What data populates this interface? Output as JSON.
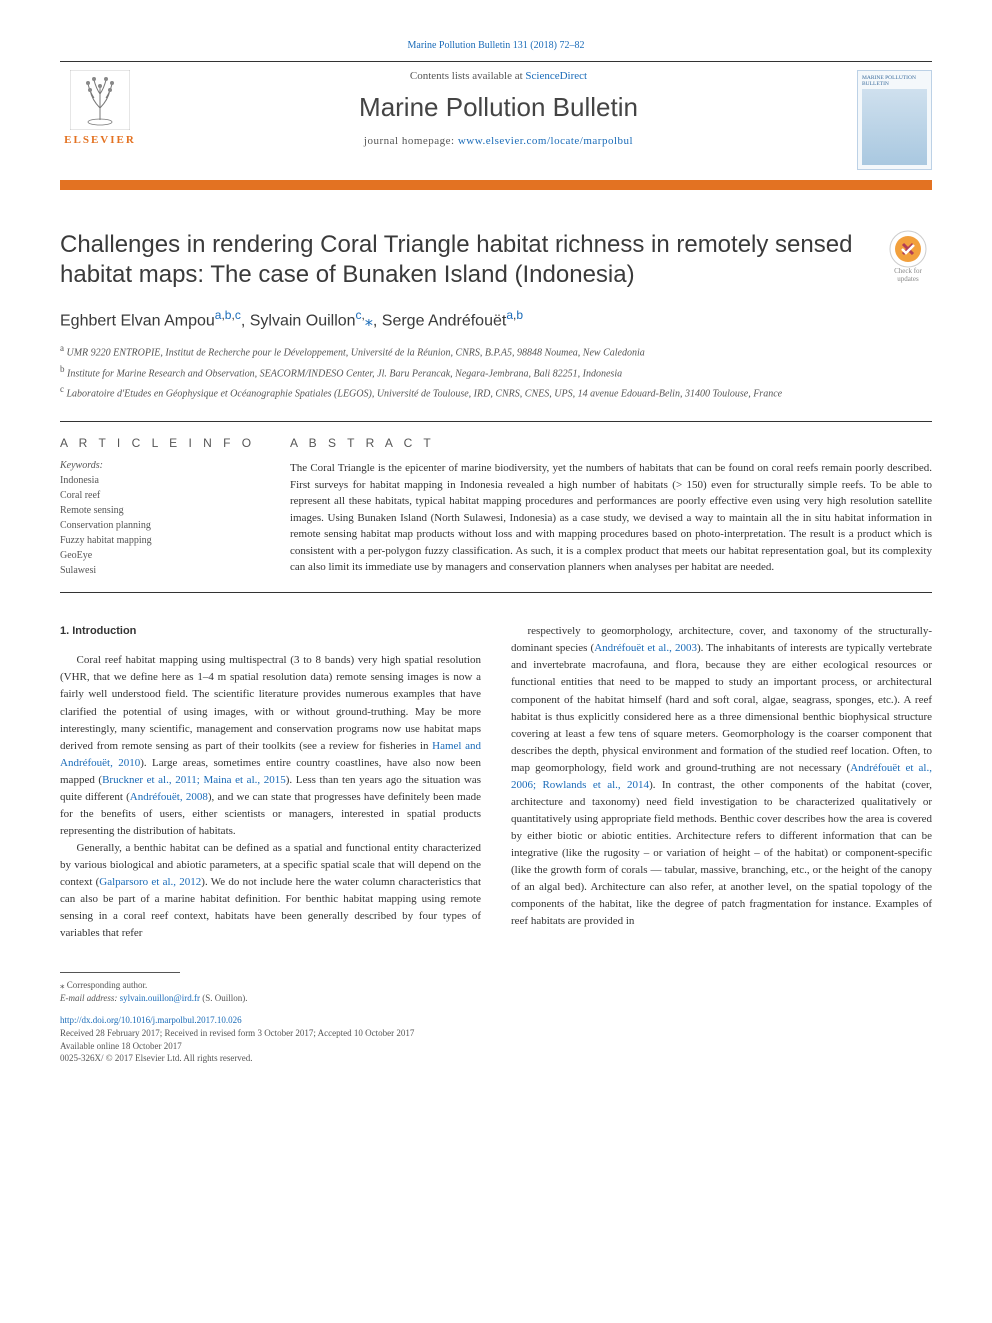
{
  "top_citation_link": "Marine Pollution Bulletin 131 (2018) 72–82",
  "masthead": {
    "contents_prefix": "Contents lists available at ",
    "contents_link_text": "ScienceDirect",
    "journal_title": "Marine Pollution Bulletin",
    "homepage_prefix": "journal homepage: ",
    "homepage_url": "www.elsevier.com/locate/marpolbul",
    "publisher_name": "ELSEVIER",
    "cover_title": "MARINE POLLUTION BULLETIN"
  },
  "updates_badge": {
    "line1": "Check for",
    "line2": "updates"
  },
  "article_title": "Challenges in rendering Coral Triangle habitat richness in remotely sensed habitat maps: The case of Bunaken Island (Indonesia)",
  "authors_html": "Eghbert Elvan Ampou<sup><a>a</a>,<a>b</a>,<a>c</a></sup>, Sylvain Ouillon<sup><a>c</a>,</sup><a>⁎</a>, Serge Andréfouët<sup><a>a</a>,<a>b</a></sup>",
  "affiliations": [
    {
      "sup": "a",
      "text": "UMR 9220 ENTROPIE, Institut de Recherche pour le Développement, Université de la Réunion, CNRS, B.P.A5, 98848 Noumea, New Caledonia"
    },
    {
      "sup": "b",
      "text": "Institute for Marine Research and Observation, SEACORM/INDESO Center, Jl. Baru Perancak, Negara-Jembrana, Bali 82251, Indonesia"
    },
    {
      "sup": "c",
      "text": "Laboratoire d'Etudes en Géophysique et Océanographie Spatiales (LEGOS), Université de Toulouse, IRD, CNRS, CNES, UPS, 14 avenue Edouard-Belin, 31400 Toulouse, France"
    }
  ],
  "article_info_label": "A R T I C L E  I N F O",
  "abstract_label": "A B S T R A C T",
  "keywords_label": "Keywords:",
  "keywords": [
    "Indonesia",
    "Coral reef",
    "Remote sensing",
    "Conservation planning",
    "Fuzzy habitat mapping",
    "GeoEye",
    "Sulawesi"
  ],
  "abstract": "The Coral Triangle is the epicenter of marine biodiversity, yet the numbers of habitats that can be found on coral reefs remain poorly described. First surveys for habitat mapping in Indonesia revealed a high number of habitats (> 150) even for structurally simple reefs. To be able to represent all these habitats, typical habitat mapping procedures and performances are poorly effective even using very high resolution satellite images. Using Bunaken Island (North Sulawesi, Indonesia) as a case study, we devised a way to maintain all the in situ habitat information in remote sensing habitat map products without loss and with mapping procedures based on photo-interpretation. The result is a product which is consistent with a per-polygon fuzzy classification. As such, it is a complex product that meets our habitat representation goal, but its complexity can also limit its immediate use by managers and conservation planners when analyses per habitat are needed.",
  "intro_heading": "1. Introduction",
  "body": {
    "col1": [
      "Coral reef habitat mapping using multispectral (3 to 8 bands) very high spatial resolution (VHR, that we define here as 1–4 m spatial resolution data) remote sensing images is now a fairly well understood field. The scientific literature provides numerous examples that have clarified the potential of using images, with or without ground-truthing. May be more interestingly, many scientific, management and conservation programs now use habitat maps derived from remote sensing as part of their toolkits (see a review for fisheries in <a>Hamel and Andréfouët, 2010</a>). Large areas, sometimes entire country coastlines, have also now been mapped (<a>Bruckner et al., 2011; Maina et al., 2015</a>). Less than ten years ago the situation was quite different (<a>Andréfouët, 2008</a>), and we can state that progresses have definitely been made for the benefits of users, either scientists or managers, interested in spatial products representing the distribution of habitats.",
      "Generally, a benthic habitat can be defined as a spatial and functional entity characterized by various biological and abiotic parameters, at a specific spatial scale that will depend on the context (<a>Galparsoro et al., 2012</a>). We do not include here the water column characteristics that can also be part of a marine habitat definition. For benthic habitat mapping using remote sensing in a coral reef context, habitats have been generally described by four types of variables that refer"
    ],
    "col2": [
      "respectively to geomorphology, architecture, cover, and taxonomy of the structurally-dominant species (<a>Andréfouët et al., 2003</a>). The inhabitants of interests are typically vertebrate and invertebrate macrofauna, and flora, because they are either ecological resources or functional entities that need to be mapped to study an important process, or architectural component of the habitat himself (hard and soft coral, algae, seagrass, sponges, etc.). A reef habitat is thus explicitly considered here as a three dimensional benthic biophysical structure covering at least a few tens of square meters. Geomorphology is the coarser component that describes the depth, physical environment and formation of the studied reef location. Often, to map geomorphology, field work and ground-truthing are not necessary (<a>Andréfouët et al., 2006; Rowlands et al., 2014</a>). In contrast, the other components of the habitat (cover, architecture and taxonomy) need field investigation to be characterized qualitatively or quantitatively using appropriate field methods. Benthic cover describes how the area is covered by either biotic or abiotic entities. Architecture refers to different information that can be integrative (like the rugosity – or variation of height – of the habitat) or component-specific (like the growth form of corals — tabular, massive, branching, etc., or the height of the canopy of an algal bed). Architecture can also refer, at another level, on the spatial topology of the components of the habitat, like the degree of patch fragmentation for instance. Examples of reef habitats are provided in"
    ]
  },
  "footnote": {
    "corr": "⁎ Corresponding author.",
    "email_label": "E-mail address: ",
    "email": "sylvain.ouillon@ird.fr",
    "email_suffix": " (S. Ouillon)."
  },
  "footer": {
    "doi": "http://dx.doi.org/10.1016/j.marpolbul.2017.10.026",
    "received": "Received 28 February 2017; Received in revised form 3 October 2017; Accepted 10 October 2017",
    "available": "Available online 18 October 2017",
    "copyright": "0025-326X/ © 2017 Elsevier Ltd. All rights reserved."
  },
  "colors": {
    "link": "#1a6bb8",
    "orange": "#e37222",
    "text": "#333333",
    "muted": "#555555"
  }
}
